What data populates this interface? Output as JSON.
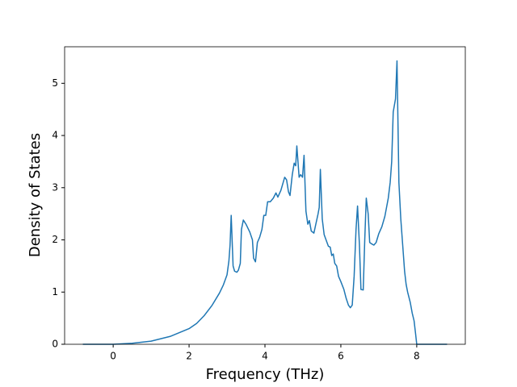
{
  "chart_data": {
    "type": "line",
    "xlabel": "Frequency (THz)",
    "ylabel": "Density of States",
    "x": [
      -0.8,
      0,
      0.5,
      1,
      1.5,
      2,
      2.2,
      2.4,
      2.6,
      2.8,
      2.9,
      3.0,
      3.05,
      3.08,
      3.11,
      3.16,
      3.2,
      3.26,
      3.3,
      3.35,
      3.38,
      3.43,
      3.5,
      3.6,
      3.67,
      3.7,
      3.75,
      3.8,
      3.86,
      3.92,
      3.97,
      4.02,
      4.07,
      4.14,
      4.22,
      4.29,
      4.34,
      4.42,
      4.52,
      4.57,
      4.62,
      4.66,
      4.72,
      4.77,
      4.81,
      4.84,
      4.9,
      4.94,
      4.99,
      5.03,
      5.08,
      5.13,
      5.17,
      5.22,
      5.29,
      5.34,
      5.4,
      5.43,
      5.46,
      5.51,
      5.56,
      5.61,
      5.67,
      5.72,
      5.76,
      5.8,
      5.84,
      5.89,
      5.94,
      6.0,
      6.08,
      6.14,
      6.2,
      6.25,
      6.3,
      6.35,
      6.4,
      6.44,
      6.49,
      6.53,
      6.59,
      6.63,
      6.67,
      6.72,
      6.76,
      6.82,
      6.87,
      6.93,
      7.0,
      7.08,
      7.16,
      7.25,
      7.3,
      7.34,
      7.38,
      7.44,
      7.48,
      7.53,
      7.58,
      7.63,
      7.68,
      7.72,
      7.76,
      7.83,
      7.88,
      7.93,
      7.97,
      8.0,
      8.8
    ],
    "series": [
      {
        "color": "#1f77b4",
        "values": [
          0,
          0,
          0.02,
          0.06,
          0.15,
          0.3,
          0.4,
          0.55,
          0.74,
          0.98,
          1.13,
          1.33,
          1.6,
          1.9,
          2.47,
          1.5,
          1.4,
          1.38,
          1.42,
          1.55,
          2.2,
          2.38,
          2.3,
          2.15,
          2.0,
          1.65,
          1.58,
          1.95,
          2.05,
          2.2,
          2.47,
          2.47,
          2.73,
          2.73,
          2.8,
          2.9,
          2.82,
          2.95,
          3.2,
          3.15,
          2.92,
          2.85,
          3.25,
          3.47,
          3.42,
          3.8,
          3.2,
          3.25,
          3.2,
          3.62,
          2.55,
          2.3,
          2.37,
          2.17,
          2.13,
          2.3,
          2.5,
          2.62,
          3.35,
          2.4,
          2.1,
          2.0,
          1.88,
          1.86,
          1.7,
          1.73,
          1.55,
          1.5,
          1.3,
          1.2,
          1.05,
          0.88,
          0.75,
          0.7,
          0.75,
          1.3,
          2.2,
          2.65,
          1.9,
          1.05,
          1.04,
          2.0,
          2.8,
          2.5,
          1.95,
          1.92,
          1.9,
          1.95,
          2.12,
          2.25,
          2.45,
          2.8,
          3.1,
          3.5,
          4.45,
          4.7,
          5.43,
          3.1,
          2.4,
          1.9,
          1.4,
          1.15,
          1.0,
          0.8,
          0.6,
          0.45,
          0.2,
          0,
          0
        ]
      }
    ],
    "xlim": [
      -1.28,
      9.28
    ],
    "ylim": [
      0,
      5.7
    ],
    "xticks": [
      0,
      2,
      4,
      6,
      8
    ],
    "yticks": [
      0,
      1,
      2,
      3,
      4,
      5
    ]
  }
}
